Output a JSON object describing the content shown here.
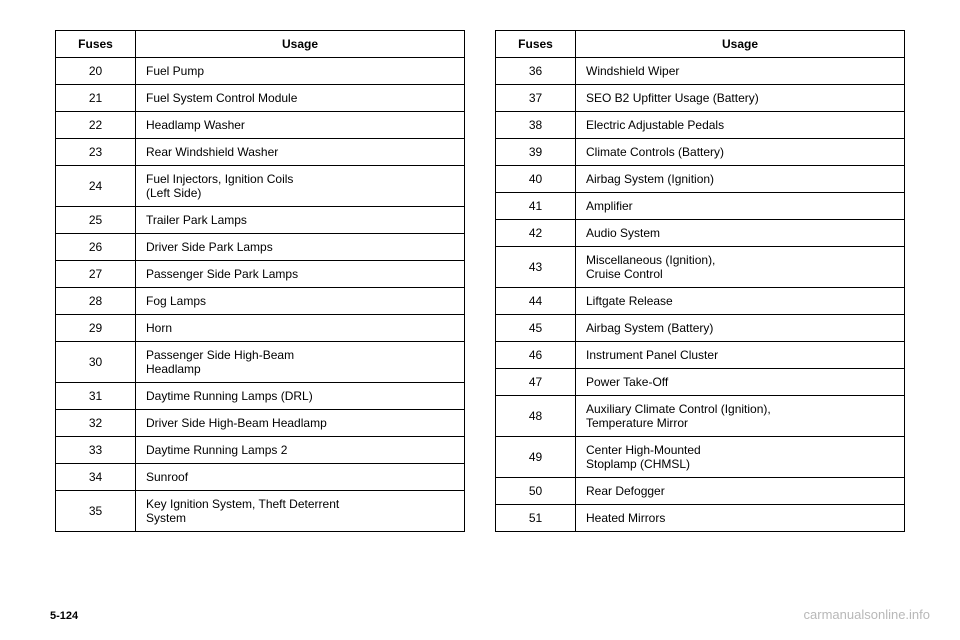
{
  "header": {
    "fuses": "Fuses",
    "usage": "Usage"
  },
  "leftTable": [
    {
      "num": "20",
      "usage": "Fuel Pump"
    },
    {
      "num": "21",
      "usage": "Fuel System Control Module"
    },
    {
      "num": "22",
      "usage": "Headlamp Washer"
    },
    {
      "num": "23",
      "usage": "Rear Windshield Washer"
    },
    {
      "num": "24",
      "usage": "Fuel Injectors, Ignition Coils\n(Left Side)"
    },
    {
      "num": "25",
      "usage": "Trailer Park Lamps"
    },
    {
      "num": "26",
      "usage": "Driver Side Park Lamps"
    },
    {
      "num": "27",
      "usage": "Passenger Side Park Lamps"
    },
    {
      "num": "28",
      "usage": "Fog Lamps"
    },
    {
      "num": "29",
      "usage": "Horn"
    },
    {
      "num": "30",
      "usage": "Passenger Side High-Beam\nHeadlamp"
    },
    {
      "num": "31",
      "usage": "Daytime Running Lamps (DRL)"
    },
    {
      "num": "32",
      "usage": "Driver Side High-Beam Headlamp"
    },
    {
      "num": "33",
      "usage": "Daytime Running Lamps 2"
    },
    {
      "num": "34",
      "usage": "Sunroof"
    },
    {
      "num": "35",
      "usage": "Key Ignition System, Theft Deterrent\nSystem"
    }
  ],
  "rightTable": [
    {
      "num": "36",
      "usage": "Windshield Wiper"
    },
    {
      "num": "37",
      "usage": "SEO B2 Upfitter Usage (Battery)"
    },
    {
      "num": "38",
      "usage": "Electric Adjustable Pedals"
    },
    {
      "num": "39",
      "usage": "Climate Controls (Battery)"
    },
    {
      "num": "40",
      "usage": "Airbag System (Ignition)"
    },
    {
      "num": "41",
      "usage": "Amplifier"
    },
    {
      "num": "42",
      "usage": "Audio System"
    },
    {
      "num": "43",
      "usage": "Miscellaneous (Ignition),\nCruise Control"
    },
    {
      "num": "44",
      "usage": "Liftgate Release"
    },
    {
      "num": "45",
      "usage": "Airbag System (Battery)"
    },
    {
      "num": "46",
      "usage": "Instrument Panel Cluster"
    },
    {
      "num": "47",
      "usage": "Power Take-Off"
    },
    {
      "num": "48",
      "usage": "Auxiliary Climate Control (Ignition),\nTemperature Mirror"
    },
    {
      "num": "49",
      "usage": "Center High-Mounted\nStoplamp (CHMSL)"
    },
    {
      "num": "50",
      "usage": "Rear Defogger"
    },
    {
      "num": "51",
      "usage": "Heated Mirrors"
    }
  ],
  "pageNumber": "5-124",
  "watermark": "carmanualsonline.info"
}
